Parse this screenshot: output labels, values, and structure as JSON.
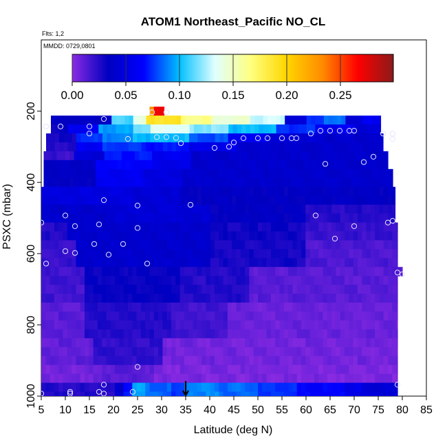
{
  "chart_data": {
    "type": "heatmap",
    "title": "ATOM1 Northeast_Pacific NO_CL",
    "flights_label": "Flts: 1,2",
    "dates_label": "MMDD: 0729,0801",
    "xlabel": "Latitude (deg N)",
    "ylabel": "PSXC (mbar)",
    "xlim": [
      5,
      85
    ],
    "ylim": [
      1000,
      0
    ],
    "x_ticks": [
      5,
      10,
      15,
      20,
      25,
      30,
      35,
      40,
      45,
      50,
      55,
      60,
      65,
      70,
      75,
      80,
      85
    ],
    "y_ticks": [
      200,
      400,
      600,
      800,
      1000
    ],
    "colorbar": {
      "min": 0,
      "max": 0.3,
      "ticks": [
        0.0,
        0.05,
        0.1,
        0.15,
        0.2,
        0.25
      ],
      "tick_labels": [
        "0.00",
        "0.05",
        "0.10",
        "0.15",
        "0.20",
        "0.25"
      ],
      "colors": [
        "#8a2be2",
        "#0000c0",
        "#0000ff",
        "#00bfff",
        "#e0ffff",
        "#ffff80",
        "#ffd700",
        "#ff8c00",
        "#ff0000",
        "#8b1a1a"
      ]
    },
    "pressure_levels": [
      175,
      200,
      225,
      250,
      275,
      300,
      325,
      350,
      375,
      400,
      425,
      450,
      475,
      500,
      525,
      550,
      575,
      600,
      625,
      650,
      675,
      700,
      725,
      750,
      775,
      800,
      825,
      850,
      875,
      900,
      925,
      950,
      975,
      1000
    ],
    "marker": {
      "x": 35,
      "y": 1000
    },
    "flight_points": [
      [
        6,
        243
      ],
      [
        9,
        243
      ],
      [
        18,
        222
      ],
      [
        28,
        203
      ],
      [
        31,
        203
      ],
      [
        15,
        243
      ],
      [
        15,
        263
      ],
      [
        23,
        278
      ],
      [
        29,
        273
      ],
      [
        31,
        273
      ],
      [
        33,
        275
      ],
      [
        34,
        290
      ],
      [
        44,
        300
      ],
      [
        41,
        303
      ],
      [
        45,
        288
      ],
      [
        47,
        276
      ],
      [
        50,
        276
      ],
      [
        52,
        276
      ],
      [
        55,
        276
      ],
      [
        57,
        276
      ],
      [
        58,
        276
      ],
      [
        61,
        263
      ],
      [
        63,
        255
      ],
      [
        65,
        255
      ],
      [
        67,
        255
      ],
      [
        69,
        255
      ],
      [
        70,
        255
      ],
      [
        76,
        263
      ],
      [
        78,
        263
      ],
      [
        78,
        278
      ],
      [
        74,
        328
      ],
      [
        72,
        343
      ],
      [
        64,
        348
      ],
      [
        18,
        450
      ],
      [
        25,
        465
      ],
      [
        36,
        463
      ],
      [
        10,
        493
      ],
      [
        5,
        513
      ],
      [
        12,
        523
      ],
      [
        17,
        518
      ],
      [
        25,
        528
      ],
      [
        22,
        573
      ],
      [
        16,
        573
      ],
      [
        10,
        593
      ],
      [
        12,
        598
      ],
      [
        19,
        603
      ],
      [
        27,
        628
      ],
      [
        6,
        628
      ],
      [
        62,
        493
      ],
      [
        66,
        558
      ],
      [
        70,
        523
      ],
      [
        77,
        513
      ],
      [
        78,
        508
      ],
      [
        79,
        653
      ],
      [
        80,
        658
      ],
      [
        25,
        918
      ],
      [
        79,
        968
      ],
      [
        18,
        968
      ],
      [
        17,
        988
      ],
      [
        18,
        993
      ],
      [
        11,
        988
      ],
      [
        11,
        993
      ],
      [
        24,
        988
      ],
      [
        5,
        993
      ]
    ]
  }
}
